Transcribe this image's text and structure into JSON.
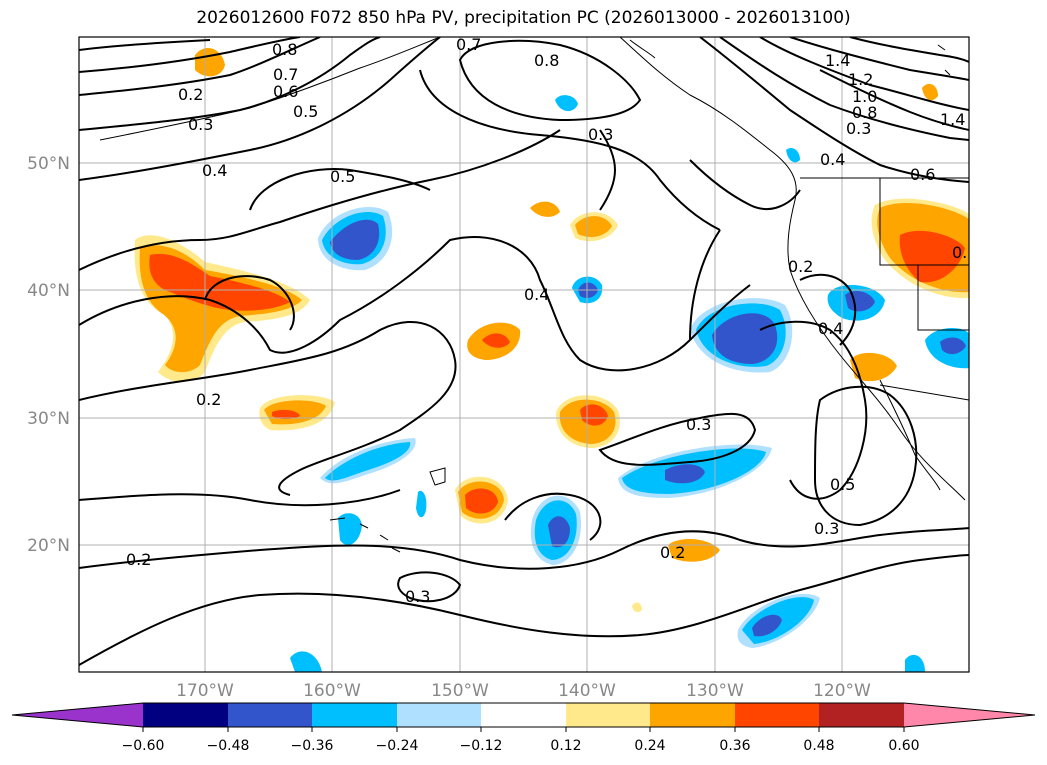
{
  "title": "2026012600 F072 850 hPa PV, precipitation PC (2026013000 - 2026013100)",
  "colors": {
    "land_outline": "#000000",
    "grid": "#b0b0b0",
    "contour": "#000000"
  },
  "lat_labels": [
    "50°N",
    "40°N",
    "30°N",
    "20°N"
  ],
  "lon_labels": [
    "170°W",
    "160°W",
    "150°W",
    "140°W",
    "130°W",
    "120°W"
  ],
  "colorbar": {
    "colors": [
      "#9933cc",
      "#000080",
      "#3355cc",
      "#00bfff",
      "#b0e0ff",
      "#ffffff",
      "#ffe98a",
      "#ffa500",
      "#ff4500",
      "#b22222",
      "#ff88aa"
    ],
    "tick_labels": [
      "−0.60",
      "−0.48",
      "−0.36",
      "−0.24",
      "−0.12",
      "0.12",
      "0.24",
      "0.36",
      "0.48",
      "0.60"
    ]
  },
  "contour_labels": [
    "0.8",
    "0.7",
    "0.6",
    "0.5",
    "0.2",
    "0.3",
    "0.4",
    "0.7",
    "0.8",
    "1.4",
    "1.2",
    "1.0",
    "0.8",
    "0.3",
    "1.4",
    "0.4",
    "0.6",
    "0.5",
    "0.4",
    "0.2",
    "0.2",
    "0.3",
    "0.4",
    "0.3",
    "0.3",
    "0.2",
    "0.5",
    "0.3",
    "0.2",
    "0.3"
  ]
}
